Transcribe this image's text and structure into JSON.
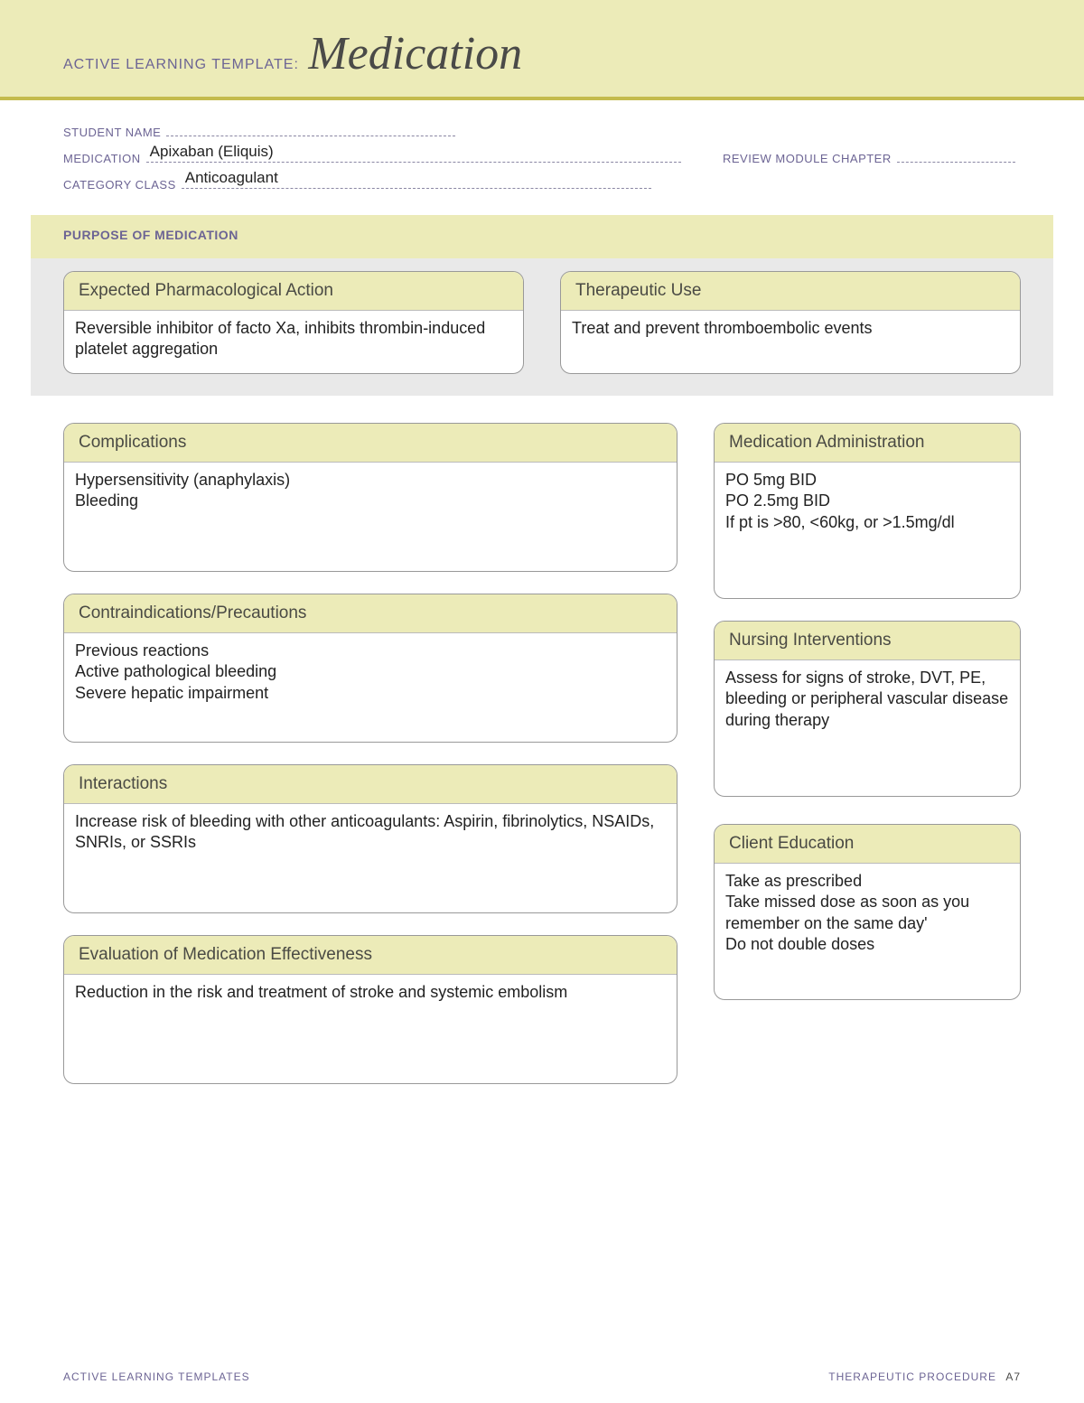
{
  "header": {
    "kicker": "ACTIVE LEARNING TEMPLATE:",
    "title": "Medication"
  },
  "meta": {
    "student_name_label": "STUDENT NAME",
    "student_name": "",
    "medication_label": "MEDICATION",
    "medication": "Apixaban (Eliquis)",
    "review_label": "REVIEW MODULE CHAPTER",
    "review": "",
    "category_label": "CATEGORY CLASS",
    "category": "Anticoagulant"
  },
  "purpose": {
    "section_label": "PURPOSE OF MEDICATION",
    "pharm_action": {
      "title": "Expected Pharmacological Action",
      "body": "Reversible inhibitor of facto Xa, inhibits thrombin-induced platelet aggregation"
    },
    "therapeutic_use": {
      "title": "Therapeutic Use",
      "body": "Treat and prevent thromboembolic events"
    }
  },
  "cards": {
    "complications": {
      "title": "Complications",
      "body": "Hypersensitivity (anaphylaxis)\nBleeding"
    },
    "contraindications": {
      "title": "Contraindications/Precautions",
      "body": "Previous reactions\nActive pathological bleeding\nSevere hepatic impairment"
    },
    "interactions": {
      "title": "Interactions",
      "body": "Increase risk of bleeding with other anticoagulants: Aspirin, fibrinolytics, NSAIDs, SNRIs, or SSRIs"
    },
    "evaluation": {
      "title": "Evaluation of Medication Effectiveness",
      "body": "Reduction in the risk and treatment of stroke and systemic embolism"
    },
    "administration": {
      "title": "Medication Administration",
      "body": "PO 5mg BID\nPO 2.5mg BID\nIf pt is >80, <60kg, or >1.5mg/dl"
    },
    "nursing": {
      "title": "Nursing Interventions",
      "body": "Assess for signs of stroke, DVT, PE, bleeding or peripheral vascular disease during therapy"
    },
    "education": {
      "title": "Client Education",
      "body": "Take as prescribed\nTake missed dose as soon as you remember on the same day'\nDo not double doses"
    }
  },
  "footer": {
    "left": "ACTIVE LEARNING TEMPLATES",
    "right": "THERAPEUTIC PROCEDURE",
    "page": "A7"
  },
  "colors": {
    "band": "#ecebb8",
    "rule": "#c4bb4d",
    "label": "#6c6494",
    "border": "#999999",
    "gray_bg": "#e9e9e9"
  }
}
